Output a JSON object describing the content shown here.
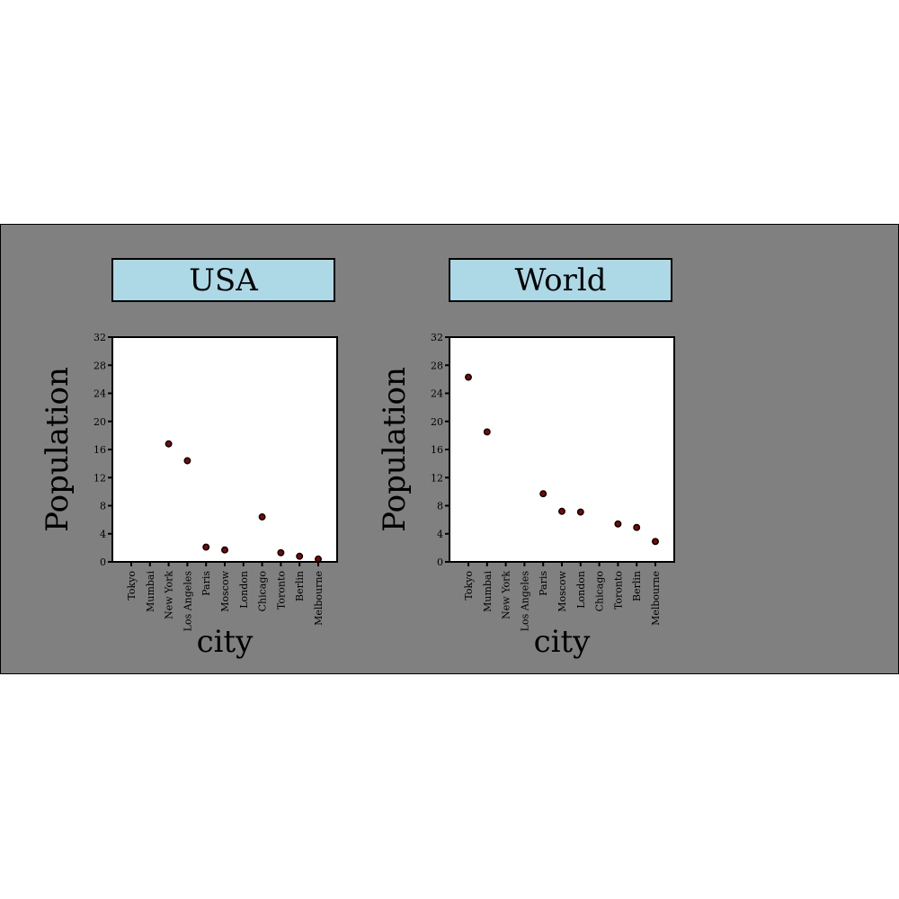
{
  "chart_data": [
    {
      "type": "scatter",
      "title": "USA",
      "xlabel": "city",
      "ylabel": "Population",
      "ylim": [
        0,
        32
      ],
      "yticks": [
        0,
        4,
        8,
        12,
        16,
        20,
        24,
        28,
        32
      ],
      "categories": [
        "Tokyo",
        "Mumbai",
        "New York",
        "Los Angeles",
        "Paris",
        "Moscow",
        "London",
        "Chicago",
        "Toronto",
        "Berlin",
        "Melbourne"
      ],
      "points": [
        {
          "x": "New York",
          "y": 16.8
        },
        {
          "x": "Los Angeles",
          "y": 14.4
        },
        {
          "x": "Paris",
          "y": 2.1
        },
        {
          "x": "Moscow",
          "y": 1.7
        },
        {
          "x": "Chicago",
          "y": 6.4
        },
        {
          "x": "Toronto",
          "y": 1.3
        },
        {
          "x": "Berlin",
          "y": 0.8
        },
        {
          "x": "Melbourne",
          "y": 0.4
        }
      ]
    },
    {
      "type": "scatter",
      "title": "World",
      "xlabel": "city",
      "ylabel": "Population",
      "ylim": [
        0,
        32
      ],
      "yticks": [
        0,
        4,
        8,
        12,
        16,
        20,
        24,
        28,
        32
      ],
      "categories": [
        "Tokyo",
        "Mumbai",
        "New York",
        "Los Angeles",
        "Paris",
        "Moscow",
        "London",
        "Chicago",
        "Toronto",
        "Berlin",
        "Melbourne"
      ],
      "points": [
        {
          "x": "Tokyo",
          "y": 26.3
        },
        {
          "x": "Mumbai",
          "y": 18.5
        },
        {
          "x": "Paris",
          "y": 9.7
        },
        {
          "x": "Moscow",
          "y": 7.2
        },
        {
          "x": "London",
          "y": 7.1
        },
        {
          "x": "Toronto",
          "y": 5.4
        },
        {
          "x": "Berlin",
          "y": 4.9
        },
        {
          "x": "Melbourne",
          "y": 2.9
        }
      ]
    }
  ],
  "colors": {
    "background": "#808080",
    "strip": "#add8e6",
    "plot": "#ffffff",
    "point_fill": "#8b0000",
    "point_stroke": "#000000"
  }
}
